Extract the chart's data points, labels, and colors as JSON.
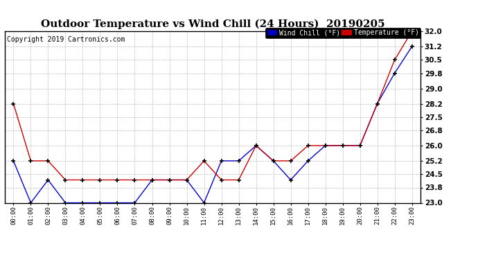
{
  "title": "Outdoor Temperature vs Wind Chill (24 Hours)  20190205",
  "copyright": "Copyright 2019 Cartronics.com",
  "x_labels": [
    "00:00",
    "01:00",
    "02:00",
    "03:00",
    "04:00",
    "05:00",
    "06:00",
    "07:00",
    "08:00",
    "09:00",
    "10:00",
    "11:00",
    "12:00",
    "13:00",
    "14:00",
    "15:00",
    "16:00",
    "17:00",
    "18:00",
    "19:00",
    "20:00",
    "21:00",
    "22:00",
    "23:00"
  ],
  "temperature": [
    28.2,
    25.2,
    25.2,
    24.2,
    24.2,
    24.2,
    24.2,
    24.2,
    24.2,
    24.2,
    24.2,
    25.2,
    24.2,
    24.2,
    26.0,
    25.2,
    25.2,
    26.0,
    26.0,
    26.0,
    26.0,
    28.2,
    30.5,
    32.0
  ],
  "wind_chill": [
    25.2,
    23.0,
    24.2,
    23.0,
    23.0,
    23.0,
    23.0,
    23.0,
    24.2,
    24.2,
    24.2,
    23.0,
    25.2,
    25.2,
    26.0,
    25.2,
    24.2,
    25.2,
    26.0,
    26.0,
    26.0,
    28.2,
    29.8,
    31.2
  ],
  "ylim_min": 23.0,
  "ylim_max": 32.0,
  "yticks": [
    23.0,
    23.8,
    24.5,
    25.2,
    26.0,
    26.8,
    27.5,
    28.2,
    29.0,
    29.8,
    30.5,
    31.2,
    32.0
  ],
  "temp_color": "#cc0000",
  "wind_chill_color": "#0000cc",
  "bg_color": "#ffffff",
  "grid_color": "#bbbbbb",
  "legend_wind_bg": "#0000bb",
  "legend_temp_bg": "#cc0000",
  "title_fontsize": 11,
  "copyright_fontsize": 7,
  "marker_color": "#000000"
}
